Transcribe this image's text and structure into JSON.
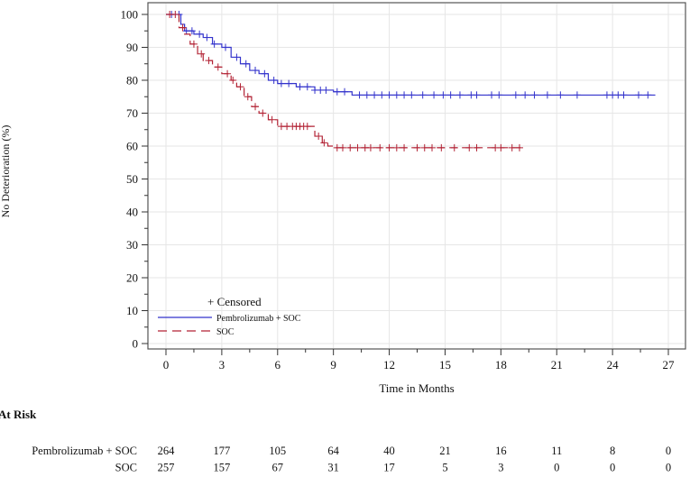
{
  "chart_data": {
    "type": "line",
    "subtype": "kaplan-meier",
    "xlabel": "Time in Months",
    "ylabel": "No Deterioration (%)",
    "xlim": [
      0,
      27
    ],
    "ylim": [
      0,
      100
    ],
    "xticks": [
      0,
      3,
      6,
      9,
      12,
      15,
      18,
      21,
      24,
      27
    ],
    "yticks": [
      0,
      10,
      20,
      30,
      40,
      50,
      60,
      70,
      80,
      90,
      100
    ],
    "grid": true,
    "legend": {
      "placement": "bottom-left",
      "censored_label": "+ Censored",
      "entries": [
        "Pembrolizumab + SOC",
        "SOC"
      ]
    },
    "series": [
      {
        "name": "Pembrolizumab + SOC",
        "color": "#3333cc",
        "style": "solid",
        "steps": [
          [
            0,
            100
          ],
          [
            0.8,
            97
          ],
          [
            1.0,
            95
          ],
          [
            1.5,
            94
          ],
          [
            2.0,
            93
          ],
          [
            2.5,
            91
          ],
          [
            3.0,
            90
          ],
          [
            3.5,
            87
          ],
          [
            4.0,
            85
          ],
          [
            4.5,
            83
          ],
          [
            5.0,
            82
          ],
          [
            5.5,
            80
          ],
          [
            6.0,
            79
          ],
          [
            7.0,
            78
          ],
          [
            8.0,
            77
          ],
          [
            9.0,
            76.5
          ],
          [
            10.0,
            75.5
          ],
          [
            26.3,
            75.5
          ]
        ],
        "censored": [
          0.3,
          0.7,
          1.1,
          1.4,
          1.8,
          2.2,
          2.6,
          3.2,
          3.8,
          4.3,
          4.8,
          5.3,
          5.8,
          6.2,
          6.6,
          7.2,
          7.6,
          8.0,
          8.3,
          8.6,
          9.2,
          9.6,
          10.4,
          10.8,
          11.2,
          11.6,
          12.0,
          12.4,
          12.8,
          13.2,
          13.8,
          14.4,
          14.9,
          15.3,
          15.8,
          16.4,
          16.7,
          17.5,
          17.9,
          18.8,
          19.3,
          19.8,
          20.5,
          21.2,
          22.1,
          23.7,
          24.0,
          24.3,
          24.6,
          25.4,
          25.9
        ]
      },
      {
        "name": "SOC",
        "color": "#b22234",
        "style": "dashed",
        "steps": [
          [
            0,
            100
          ],
          [
            0.7,
            96
          ],
          [
            1.0,
            94
          ],
          [
            1.3,
            91
          ],
          [
            1.7,
            88
          ],
          [
            2.0,
            86
          ],
          [
            2.5,
            84
          ],
          [
            3.0,
            82
          ],
          [
            3.5,
            80
          ],
          [
            3.8,
            78
          ],
          [
            4.2,
            75
          ],
          [
            4.6,
            72
          ],
          [
            5.0,
            70
          ],
          [
            5.5,
            68
          ],
          [
            6.0,
            66
          ],
          [
            7.8,
            66
          ],
          [
            8.0,
            63
          ],
          [
            8.4,
            61
          ],
          [
            8.7,
            60
          ],
          [
            9.0,
            59.5
          ],
          [
            19.3,
            59.5
          ]
        ],
        "censored": [
          0.2,
          0.5,
          0.9,
          1.5,
          1.9,
          2.3,
          2.8,
          3.3,
          3.6,
          4.0,
          4.4,
          4.8,
          5.2,
          5.7,
          6.2,
          6.5,
          6.8,
          7.0,
          7.2,
          7.4,
          7.6,
          8.2,
          8.5,
          9.2,
          9.5,
          9.9,
          10.3,
          10.7,
          11.0,
          11.5,
          12.0,
          12.4,
          12.8,
          13.5,
          13.9,
          14.3,
          14.8,
          15.5,
          16.3,
          16.7,
          17.7,
          18.0,
          18.6,
          19.0
        ]
      }
    ],
    "at_risk": {
      "title": "At Risk",
      "rows": [
        {
          "label": "Pembrolizumab + SOC",
          "values": [
            264,
            177,
            105,
            64,
            40,
            21,
            16,
            11,
            8,
            0
          ]
        },
        {
          "label": "SOC",
          "values": [
            257,
            157,
            67,
            31,
            17,
            5,
            3,
            0,
            0,
            0
          ]
        }
      ]
    }
  }
}
